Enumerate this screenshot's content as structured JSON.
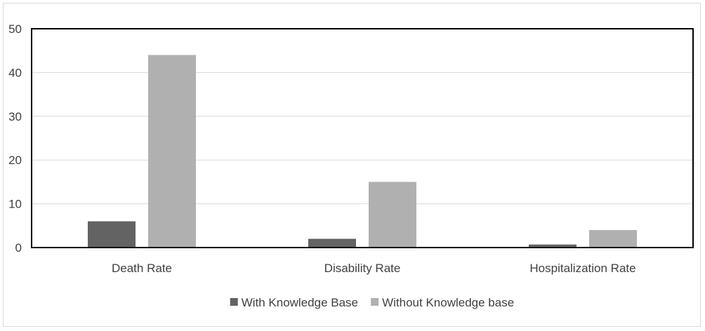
{
  "chart_data": {
    "type": "bar",
    "title": "",
    "xlabel": "",
    "ylabel": "",
    "categories": [
      "Death Rate",
      "Disability Rate",
      "Hospitalization Rate"
    ],
    "series": [
      {
        "name": "With Knowledge Base",
        "values": [
          6,
          2,
          0.7
        ],
        "color": "#636363"
      },
      {
        "name": "Without Knowledge base",
        "values": [
          44,
          15,
          4
        ],
        "color": "#b0b0b0"
      }
    ],
    "ylim": [
      0,
      50
    ],
    "yticks": [
      0,
      10,
      20,
      30,
      40,
      50
    ],
    "grid": true,
    "legend": "bottom"
  }
}
